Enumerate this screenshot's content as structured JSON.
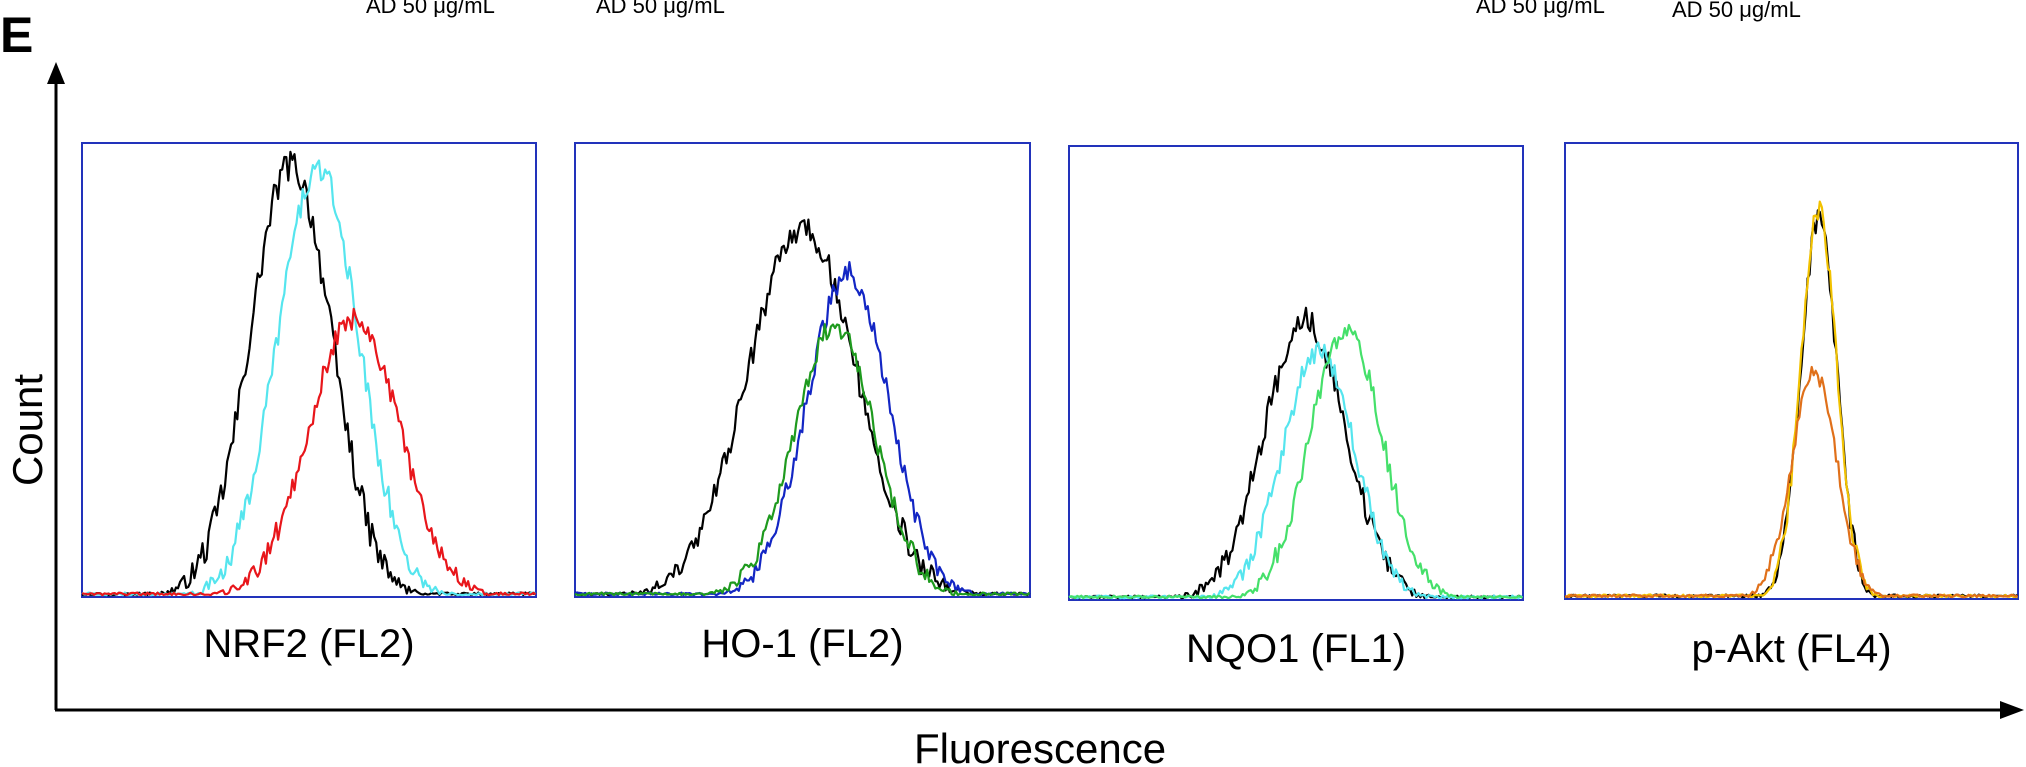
{
  "figure": {
    "panel_letter": "E",
    "y_axis_label": "Count",
    "x_axis_label": "Fluorescence",
    "top_fragments": [
      "AD 50 μg/mL",
      "AD 50 μg/mL",
      "AD 50 μg/mL",
      "AD 50 μg/mL"
    ]
  },
  "chart_data": [
    {
      "type": "line",
      "xlabel": "NRF2 (FL2)",
      "ylabel": "Count",
      "xlim": [
        0,
        100
      ],
      "ylim": [
        0,
        100
      ],
      "grid": false,
      "series": [
        {
          "color": "#000000",
          "peak": 46,
          "width": 9,
          "height": 96,
          "noise": 7
        },
        {
          "color": "#55e5ee",
          "peak": 52,
          "width": 9,
          "height": 95,
          "noise": 6
        },
        {
          "color": "#e8161b",
          "peak": 60,
          "width": 10,
          "height": 62,
          "noise": 5
        }
      ]
    },
    {
      "type": "line",
      "xlabel": "HO-1 (FL2)",
      "ylabel": "Count",
      "xlim": [
        0,
        100
      ],
      "ylim": [
        0,
        100
      ],
      "grid": false,
      "series": [
        {
          "color": "#000000",
          "peak": 50,
          "width": 12,
          "height": 82,
          "noise": 6
        },
        {
          "color": "#1326c4",
          "peak": 60,
          "width": 9,
          "height": 72,
          "noise": 5
        },
        {
          "color": "#1e9a1e",
          "peak": 57,
          "width": 9,
          "height": 60,
          "noise": 5
        }
      ]
    },
    {
      "type": "line",
      "xlabel": "NQO1 (FL1)",
      "ylabel": "Count",
      "xlim": [
        0,
        100
      ],
      "ylim": [
        0,
        100
      ],
      "grid": false,
      "series": [
        {
          "color": "#000000",
          "peak": 52,
          "width": 9,
          "height": 62,
          "noise": 6
        },
        {
          "color": "#55e5ee",
          "peak": 55,
          "width": 8,
          "height": 55,
          "noise": 5
        },
        {
          "color": "#45e06a",
          "peak": 61,
          "width": 8,
          "height": 60,
          "noise": 5
        }
      ]
    },
    {
      "type": "line",
      "xlabel": "p-Akt (FL4)",
      "ylabel": "Count",
      "xlim": [
        0,
        100
      ],
      "ylim": [
        0,
        100
      ],
      "grid": false,
      "series": [
        {
          "color": "#000000",
          "peak": 56,
          "width": 4,
          "height": 84,
          "noise": 5
        },
        {
          "color": "#f2c200",
          "peak": 56,
          "width": 4,
          "height": 86,
          "noise": 5
        },
        {
          "color": "#e0701a",
          "peak": 55,
          "width": 5,
          "height": 50,
          "noise": 4
        }
      ]
    }
  ]
}
